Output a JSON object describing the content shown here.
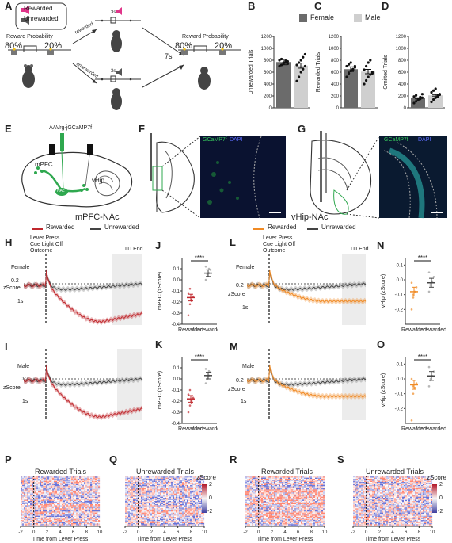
{
  "panel_labels": {
    "A": "A",
    "B": "B",
    "C": "C",
    "D": "D",
    "E": "E",
    "F": "F",
    "G": "G",
    "H": "H",
    "I": "I",
    "J": "J",
    "K": "K",
    "L": "L",
    "M": "M",
    "N": "N",
    "O": "O",
    "P": "P",
    "Q": "Q",
    "R": "R",
    "S": "S"
  },
  "legendA": {
    "rewarded": "Rewarded",
    "unrewarded": "Unrewarded"
  },
  "schematic": {
    "reward_prob_left": "Reward Probability",
    "reward_prob_right": "Reward Probability",
    "p80": "80%",
    "p20": "20%",
    "p80b": "80%",
    "p20b": "20%",
    "rewarded_arrow": "rewarded",
    "unrewarded_arrow": "unrewarded",
    "t3s_top": "3s",
    "t3s_bottom": "3s",
    "iti": "7s"
  },
  "sex_legend": {
    "female": "Female",
    "male": "Male"
  },
  "colors": {
    "female": "#6b6b6b",
    "male": "#cfcfcf",
    "rewarded_mpfc": "#c0282d",
    "rewarded_vhip": "#f08a24",
    "unrewarded": "#444444",
    "green": "#2fa84f",
    "pink": "#e0358a"
  },
  "chart_data": [
    {
      "type": "bar",
      "panel": "B",
      "categories": [
        "Female",
        "Male"
      ],
      "values": [
        770,
        710
      ],
      "ylabel": "Unrewarded Trials",
      "ylim": [
        0,
        1200
      ],
      "yticks": [
        "0",
        "200",
        "400",
        "600",
        "800",
        "1000",
        "1200"
      ],
      "points": [
        [
          700,
          720,
          740,
          760,
          780,
          800,
          820,
          760,
          790,
          740
        ],
        [
          450,
          520,
          600,
          650,
          700,
          720,
          760,
          800,
          850,
          900
        ]
      ]
    },
    {
      "type": "bar",
      "panel": "C",
      "categories": [
        "Female",
        "Male"
      ],
      "values": [
        650,
        610
      ],
      "ylabel": "Rewarded Trials",
      "ylim": [
        0,
        1200
      ],
      "yticks": [
        "0",
        "200",
        "400",
        "600",
        "800",
        "1000",
        "1200"
      ],
      "points": [
        [
          520,
          580,
          620,
          650,
          680,
          700,
          730,
          760,
          640,
          700
        ],
        [
          400,
          460,
          520,
          560,
          600,
          640,
          700,
          760,
          800,
          580
        ]
      ]
    },
    {
      "type": "bar",
      "panel": "D",
      "categories": [
        "Female",
        "Male"
      ],
      "values": [
        160,
        210
      ],
      "ylabel": "Omitted Trials",
      "ylim": [
        0,
        1200
      ],
      "yticks": [
        "0",
        "200",
        "400",
        "600",
        "800",
        "1000",
        "1200"
      ],
      "points": [
        [
          80,
          110,
          130,
          150,
          170,
          190,
          210,
          140,
          180,
          230
        ],
        [
          100,
          140,
          170,
          200,
          230,
          260,
          290,
          320,
          190,
          220
        ]
      ]
    },
    {
      "type": "dot",
      "panel": "J",
      "categories": [
        "Rewarded",
        "Unrewarded"
      ],
      "means": [
        -0.16,
        0.06
      ],
      "ylabel": "mPFC (zScore)",
      "ylim": [
        -0.4,
        0.2
      ],
      "yticks": [
        "-0.4",
        "-0.3",
        "-0.2",
        "-0.1",
        "0.0",
        "0.1"
      ],
      "sig": "****",
      "points": [
        [
          -0.32,
          -0.22,
          -0.18,
          -0.15,
          -0.12,
          -0.08,
          -0.19
        ],
        [
          0.0,
          0.03,
          0.06,
          0.09,
          0.12,
          0.05,
          0.1
        ]
      ]
    },
    {
      "type": "dot",
      "panel": "K",
      "categories": [
        "Rewarded",
        "Unrewarded"
      ],
      "means": [
        -0.18,
        0.03
      ],
      "ylabel": "mPFC (zScore)",
      "ylim": [
        -0.4,
        0.2
      ],
      "yticks": [
        "-0.4",
        "-0.3",
        "-0.2",
        "-0.1",
        "0.0",
        "0.1"
      ],
      "sig": "****",
      "points": [
        [
          -0.3,
          -0.24,
          -0.2,
          -0.17,
          -0.14,
          -0.1,
          -0.22
        ],
        [
          -0.04,
          0.0,
          0.03,
          0.06,
          0.09,
          0.02,
          0.07
        ]
      ]
    },
    {
      "type": "dot",
      "panel": "N",
      "categories": [
        "Rewarded",
        "Unrewarded"
      ],
      "means": [
        -0.08,
        -0.02
      ],
      "ylabel": "vHip (zScore)",
      "ylim": [
        -0.3,
        0.15
      ],
      "yticks": [
        "-0.2",
        "-0.1",
        "0.0",
        "0.1"
      ],
      "sig": "****",
      "points": [
        [
          -0.2,
          -0.12,
          -0.08,
          -0.05,
          -0.02,
          -0.1
        ],
        [
          -0.08,
          -0.04,
          -0.01,
          0.02,
          0.05,
          -0.03
        ]
      ]
    },
    {
      "type": "dot",
      "panel": "O",
      "categories": [
        "Rewarded",
        "Unrewarded"
      ],
      "means": [
        -0.04,
        0.02
      ],
      "ylabel": "vHip (zScore)",
      "ylim": [
        -0.3,
        0.15
      ],
      "yticks": [
        "-0.2",
        "-0.1",
        "0.0",
        "0.1"
      ],
      "sig": "****",
      "points": [
        [
          -0.28,
          -0.1,
          -0.06,
          -0.03,
          0.0,
          -0.05
        ],
        [
          -0.05,
          -0.01,
          0.02,
          0.05,
          0.08,
          0.0
        ]
      ]
    }
  ],
  "traces": {
    "mpfc_title": "mPFC-NAc",
    "vhip_title": "vHip-NAc",
    "legend_rewarded": "Rewarded",
    "legend_unrewarded": "Unrewarded",
    "lever_press_h": "Lever Press",
    "cue_off_h": "Cue Light Off",
    "outcome_h": "Outcome",
    "lever_press_l": "Lever Press",
    "cue_off_l": "Cue Light Off",
    "outcome_l": "Outcome",
    "iti_end_h": "ITI End",
    "iti_end_l": "ITI End",
    "female_h": "Female",
    "male_i": "Male",
    "female_l": "Female",
    "male_m": "Male",
    "scale_z": "0.2",
    "scale_z_label": "zScore",
    "scale_t": "1s"
  },
  "ef": {
    "virus": "AAVrg-jGCaMP7f",
    "mpfc": "mPFC",
    "vhip": "vHip",
    "nac": "NAc",
    "gcamp": "GCaMP7f",
    "dapi": "DAPI",
    "gcamp2": "GCaMP7f",
    "dapi2": "DAPI"
  },
  "heatmaps": {
    "P_title": "Rewarded Trials",
    "Q_title": "Unrewarded Trials",
    "R_title": "Rewarded Trials",
    "S_title": "Unrewarded Trials",
    "xlabel": "Time from Lever Press",
    "xticks": [
      "-2",
      "0",
      "2",
      "4",
      "6",
      "8",
      "10"
    ],
    "cbar_title": "zScore",
    "cbar_ticks": [
      "2",
      "0",
      "-2"
    ]
  }
}
